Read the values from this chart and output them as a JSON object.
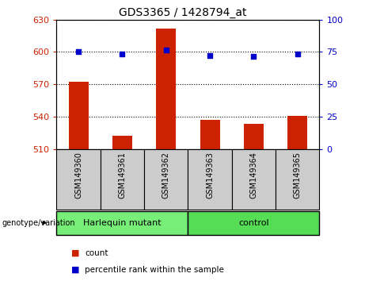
{
  "title": "GDS3365 / 1428794_at",
  "samples": [
    "GSM149360",
    "GSM149361",
    "GSM149362",
    "GSM149363",
    "GSM149364",
    "GSM149365"
  ],
  "bar_values": [
    572,
    522,
    622,
    537,
    533,
    541
  ],
  "dot_values": [
    600,
    598,
    602,
    597,
    596,
    598
  ],
  "y_min": 510,
  "y_max": 630,
  "y_ticks": [
    510,
    540,
    570,
    600,
    630
  ],
  "y2_ticks": [
    0,
    25,
    50,
    75,
    100
  ],
  "bar_color": "#cc2200",
  "dot_color": "#0000cc",
  "groups": [
    {
      "label": "Harlequin mutant",
      "indices": [
        0,
        1,
        2
      ],
      "color": "#77ee77"
    },
    {
      "label": "control",
      "indices": [
        3,
        4,
        5
      ],
      "color": "#55dd55"
    }
  ],
  "group_label": "genotype/variation",
  "legend_count_label": "count",
  "legend_pct_label": "percentile rank within the sample",
  "x_tick_bg": "#cccccc",
  "grid_color": "black"
}
